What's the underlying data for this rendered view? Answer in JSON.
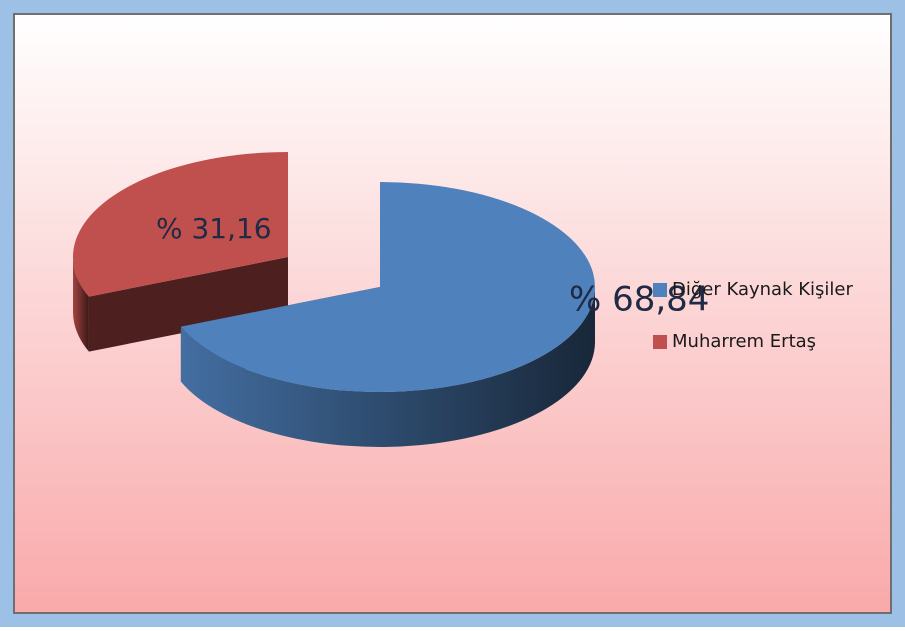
{
  "chart_data": {
    "type": "pie",
    "categories": [
      "Diğer Kaynak Kişiler",
      "Muharrem Ertaş"
    ],
    "values": [
      68.84,
      31.16
    ],
    "value_labels": [
      "% 68,84",
      "% 31,16"
    ],
    "colors": [
      "#4f81bd",
      "#c0504d"
    ],
    "legend": "right"
  }
}
